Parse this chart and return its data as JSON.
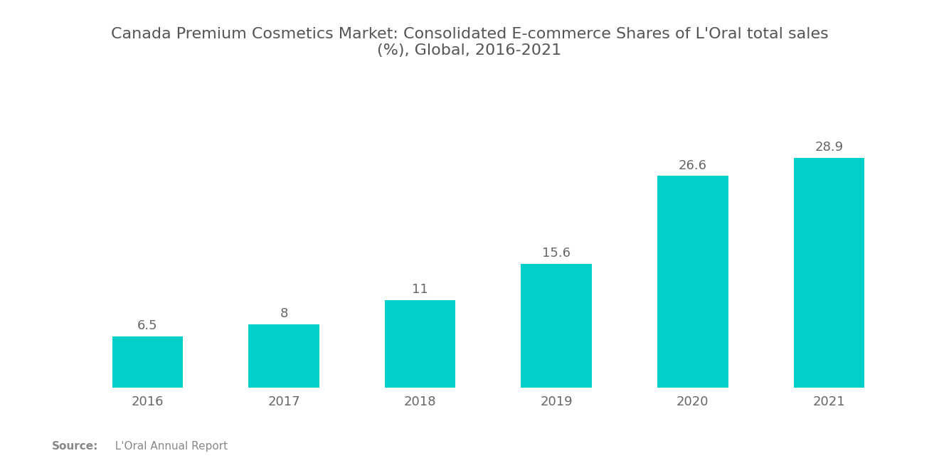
{
  "title": "Canada Premium Cosmetics Market: Consolidated E-commerce Shares of L'Oral total sales\n(%), Global, 2016-2021",
  "categories": [
    "2016",
    "2017",
    "2018",
    "2019",
    "2020",
    "2021"
  ],
  "values": [
    6.5,
    8,
    11,
    15.6,
    26.6,
    28.9
  ],
  "bar_color": "#00CFCA",
  "background_color": "#ffffff",
  "text_color": "#666666",
  "title_color": "#555555",
  "value_label_color": "#666666",
  "source_bold": "Source:",
  "source_detail": "  L'Oral Annual Report",
  "ylim": [
    0,
    38
  ],
  "bar_width": 0.52,
  "title_fontsize": 16,
  "tick_fontsize": 13,
  "value_fontsize": 13
}
